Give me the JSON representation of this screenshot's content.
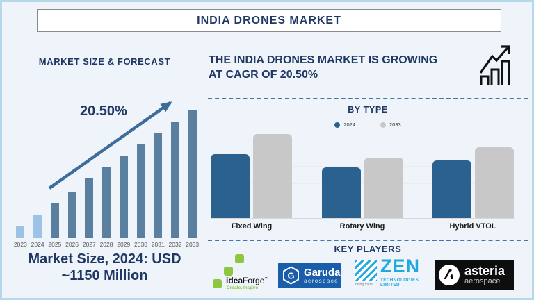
{
  "page": {
    "title": "INDIA DRONES MARKET"
  },
  "left_section": {
    "heading": "MARKET SIZE & FORECAST",
    "growth_label": "20.50%",
    "market_size_line1": "Market Size, 2024: USD",
    "market_size_line2": "~1150 Million"
  },
  "right_section": {
    "headline_line1": "THE INDIA DRONES MARKET IS GROWING",
    "headline_line2": "AT CAGR OF 20.50%",
    "growth_icon": "bar-chart-with-rising-arrow"
  },
  "by_type": {
    "heading": "BY TYPE",
    "legend": [
      {
        "label": "2024",
        "color": "#2a618f"
      },
      {
        "label": "2033",
        "color": "#c8c8c8"
      }
    ]
  },
  "key_players": {
    "heading": "KEY PLAYERS",
    "players": [
      {
        "name": "ideaForge",
        "brand_bold": "idea",
        "brand_rest": "Forge",
        "trademark": "™",
        "tagline": "Create. Inspire"
      },
      {
        "name": "Garuda Aerospace",
        "brand": "Garuda",
        "sub": "aerospace"
      },
      {
        "name": "Zen Technologies",
        "brand": "ZEN",
        "sub": "TECHNOLOGIES LIMITED",
        "tagline": "being there..."
      },
      {
        "name": "Asteria Aerospace",
        "brand": "asteria",
        "sub": "aerospace"
      }
    ]
  },
  "chart_data": [
    {
      "type": "bar",
      "title": "MARKET SIZE & FORECAST",
      "categories": [
        "2023",
        "2024",
        "2025",
        "2026",
        "2027",
        "2028",
        "2029",
        "2030",
        "2031",
        "2032",
        "2033"
      ],
      "values_pct_of_max": [
        9,
        18,
        27,
        36,
        46,
        55,
        64,
        73,
        82,
        91,
        100
      ],
      "bar_colors": [
        "#9cc3e6",
        "#9cc3e6",
        "#5b7f9e",
        "#5b7f9e",
        "#5b7f9e",
        "#5b7f9e",
        "#5b7f9e",
        "#5b7f9e",
        "#5b7f9e",
        "#5b7f9e",
        "#5b7f9e"
      ],
      "annotation": "20.50%",
      "xlabel": "",
      "ylabel": "",
      "grid": false,
      "note": "No numeric y-axis shown; values are relative bar heights (% of tallest bar). Market size 2024 ≈ USD 1150 Million, CAGR 20.50%."
    },
    {
      "type": "bar",
      "title": "BY TYPE",
      "categories": [
        "Fixed Wing",
        "Rotary Wing",
        "Hybrid VTOL"
      ],
      "series": [
        {
          "name": "2024",
          "color": "#2a618f",
          "values_pct_of_max": [
            76,
            60,
            69
          ]
        },
        {
          "name": "2033",
          "color": "#c8c8c8",
          "values_pct_of_max": [
            100,
            72,
            84
          ]
        }
      ],
      "xlabel": "",
      "ylabel": "",
      "grid": true,
      "legend_position": "top",
      "note": "No numeric y-axis shown; values are relative bar heights (% of tallest bar)."
    }
  ],
  "colors": {
    "background": "#eef4f9",
    "frame_border": "#b5d9ea",
    "navy": "#1f3864",
    "steel_bar": "#5b7f9e",
    "light_bar": "#9cc3e6",
    "arrow": "#3e6d9c",
    "type_blue": "#2a618f",
    "type_gray": "#c8c8c8",
    "dashed_divider": "#4176a8",
    "ideaforge_green": "#8dc63f",
    "garuda_blue": "#1a5dab",
    "zen_cyan": "#1fa9e0",
    "asteria_black": "#0e0e0e"
  }
}
